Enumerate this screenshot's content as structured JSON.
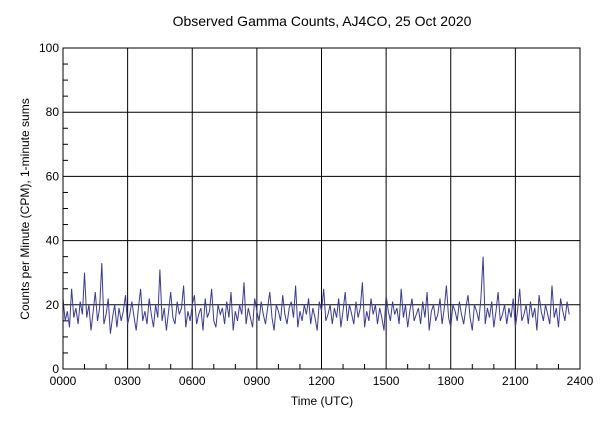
{
  "chart_data": {
    "type": "line",
    "title": "Observed Gamma Counts, AJ4CO, 25 Oct 2020",
    "xlabel": "Time (UTC)",
    "ylabel": "Counts per Minute (CPM), 1-minute sums",
    "xlim": [
      0,
      24
    ],
    "ylim": [
      0,
      100
    ],
    "x_ticks": [
      "0000",
      "0300",
      "0600",
      "0900",
      "1200",
      "1500",
      "1800",
      "2100",
      "2400"
    ],
    "y_ticks": [
      "0",
      "20",
      "40",
      "60",
      "80",
      "100"
    ],
    "grid": true,
    "line_color": "#3a3a9e",
    "x_interval_minutes": 6,
    "series": [
      {
        "name": "CPM",
        "values": [
          22,
          15,
          18,
          13,
          25,
          16,
          19,
          14,
          21,
          17,
          30,
          16,
          20,
          12,
          18,
          24,
          15,
          19,
          33,
          14,
          17,
          22,
          11,
          16,
          20,
          13,
          19,
          15,
          18,
          23,
          14,
          17,
          21,
          16,
          12,
          19,
          25,
          15,
          18,
          14,
          22,
          17,
          13,
          20,
          16,
          31,
          15,
          19,
          12,
          18,
          24,
          16,
          14,
          21,
          17,
          19,
          26,
          13,
          18,
          15,
          20,
          23,
          14,
          17,
          19,
          12,
          22,
          16,
          18,
          25,
          15,
          13,
          20,
          17,
          19,
          14,
          21,
          16,
          24,
          12,
          18,
          15,
          20,
          17,
          27,
          14,
          19,
          16,
          13,
          22,
          18,
          15,
          21,
          17,
          14,
          19,
          24,
          16,
          12,
          20,
          18,
          15,
          23,
          17,
          14,
          19,
          21,
          16,
          26,
          13,
          18,
          15,
          20,
          17,
          22,
          14,
          19,
          16,
          12,
          21,
          18,
          25,
          15,
          17,
          20,
          14,
          19,
          16,
          22,
          13,
          18,
          24,
          15,
          20,
          17,
          14,
          21,
          16,
          19,
          27,
          13,
          18,
          15,
          22,
          17,
          20,
          14,
          19,
          16,
          12,
          23,
          18,
          15,
          21,
          17,
          19,
          14,
          25,
          16,
          20,
          13,
          18,
          22,
          15,
          17,
          19,
          14,
          21,
          16,
          24,
          12,
          18,
          20,
          15,
          17,
          22,
          14,
          19,
          26,
          16,
          13,
          20,
          18,
          15,
          21,
          17,
          14,
          19,
          23,
          16,
          12,
          20,
          18,
          15,
          22,
          35,
          14,
          19,
          16,
          21,
          13,
          18,
          24,
          15,
          17,
          20,
          14,
          19,
          16,
          22,
          13,
          18,
          25,
          15,
          17,
          20,
          14,
          21,
          16,
          19,
          12,
          23,
          18,
          15,
          20,
          17,
          14,
          26,
          16,
          19,
          13,
          22,
          18,
          15,
          21,
          17
        ]
      }
    ]
  }
}
